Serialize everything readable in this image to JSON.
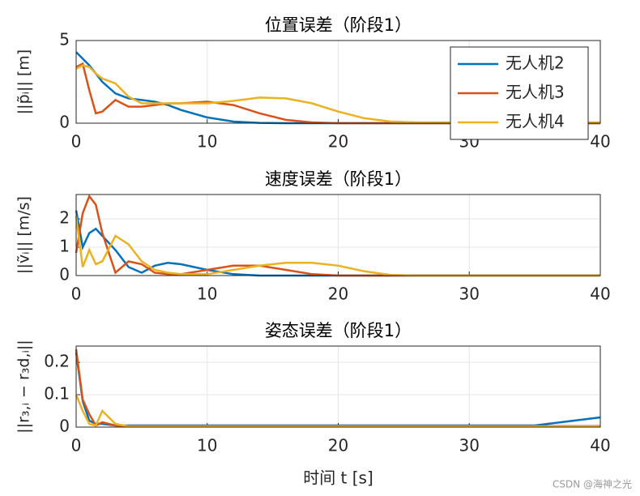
{
  "chart_data": [
    {
      "type": "line",
      "title": "位置误差（阶段1）",
      "ylabel": "||p̃ᵢ|| [m]",
      "x": [
        0,
        0.5,
        1,
        1.5,
        2,
        3,
        4,
        5,
        6,
        7,
        8,
        10,
        12,
        14,
        16,
        18,
        20,
        22,
        24,
        26,
        30,
        35,
        40
      ],
      "xlim": [
        0,
        40
      ],
      "xticks": [
        0,
        10,
        20,
        30,
        40
      ],
      "ylim": [
        0,
        5
      ],
      "yticks": [
        0,
        5
      ],
      "grid": true,
      "legend": "upper right",
      "series": [
        {
          "name": "无人机2",
          "color": "#0072bd",
          "values": [
            4.3,
            3.9,
            3.5,
            3.0,
            2.5,
            1.8,
            1.5,
            1.4,
            1.3,
            1.1,
            0.8,
            0.35,
            0.1,
            0.02,
            0,
            0,
            0,
            0,
            0,
            0,
            0,
            0,
            0
          ]
        },
        {
          "name": "无人机3",
          "color": "#d95319",
          "values": [
            3.4,
            3.6,
            2.0,
            0.6,
            0.7,
            1.4,
            1.0,
            1.0,
            1.1,
            1.2,
            1.2,
            1.3,
            1.1,
            0.6,
            0.2,
            0.05,
            0,
            0,
            0,
            0,
            0,
            0,
            0
          ]
        },
        {
          "name": "无人机4",
          "color": "#edb120",
          "values": [
            3.3,
            3.5,
            3.4,
            3.0,
            2.7,
            2.4,
            1.6,
            1.2,
            1.2,
            1.2,
            1.2,
            1.2,
            1.35,
            1.55,
            1.5,
            1.2,
            0.7,
            0.3,
            0.1,
            0.05,
            0.05,
            0.05,
            0.05
          ]
        }
      ]
    },
    {
      "type": "line",
      "title": "速度误差（阶段1）",
      "ylabel": "||ṽᵢ|| [m/s]",
      "x": [
        0,
        0.5,
        1,
        1.5,
        2,
        3,
        4,
        5,
        6,
        7,
        8,
        10,
        12,
        14,
        16,
        18,
        20,
        22,
        24,
        26,
        30,
        35,
        40
      ],
      "xlim": [
        0,
        40
      ],
      "xticks": [
        0,
        10,
        20,
        30,
        40
      ],
      "ylim": [
        0,
        2.86
      ],
      "yticks": [
        0,
        1,
        2
      ],
      "grid": true,
      "series": [
        {
          "color": "#0072bd",
          "values": [
            2.3,
            1.0,
            1.5,
            1.65,
            1.4,
            0.9,
            0.3,
            0.1,
            0.35,
            0.45,
            0.4,
            0.2,
            0.05,
            0,
            0,
            0,
            0,
            0,
            0,
            0,
            0,
            0,
            0
          ]
        },
        {
          "color": "#d95319",
          "values": [
            0.8,
            2.2,
            2.8,
            2.5,
            1.5,
            0.1,
            0.5,
            0.4,
            0.1,
            0.05,
            0.05,
            0.2,
            0.35,
            0.35,
            0.2,
            0.05,
            0,
            0,
            0,
            0,
            0,
            0,
            0
          ]
        },
        {
          "color": "#edb120",
          "values": [
            2.1,
            0.3,
            0.9,
            0.4,
            0.5,
            1.4,
            1.1,
            0.5,
            0.2,
            0.1,
            0.05,
            0.05,
            0.2,
            0.35,
            0.45,
            0.45,
            0.35,
            0.15,
            0.02,
            0,
            0,
            0,
            0
          ]
        }
      ]
    },
    {
      "type": "line",
      "title": "姿态误差（阶段1）",
      "ylabel": "||r₃,ᵢ − r₃d,ᵢ||",
      "xlabel": "时间 t [s]",
      "x": [
        0,
        0.5,
        1,
        1.5,
        2,
        3,
        4,
        5,
        6,
        7,
        8,
        10,
        12,
        14,
        16,
        18,
        20,
        22,
        24,
        26,
        30,
        35,
        40
      ],
      "xlim": [
        0,
        40
      ],
      "xticks": [
        0,
        10,
        20,
        30,
        40
      ],
      "ylim": [
        0,
        0.25
      ],
      "yticks": [
        0,
        0.1,
        0.2
      ],
      "grid": true,
      "series": [
        {
          "color": "#0072bd",
          "values": [
            0.23,
            0.08,
            0.02,
            0.01,
            0.01,
            0.005,
            0.005,
            0.005,
            0.005,
            0.005,
            0.005,
            0.005,
            0.005,
            0.005,
            0.005,
            0.005,
            0.005,
            0.005,
            0.005,
            0.005,
            0.005,
            0.005,
            0.03
          ]
        },
        {
          "color": "#d95319",
          "values": [
            0.24,
            0.085,
            0.04,
            0.005,
            0.015,
            0.005,
            0.003,
            0.003,
            0.003,
            0.003,
            0.003,
            0.003,
            0.003,
            0.003,
            0.003,
            0.003,
            0.003,
            0.003,
            0.003,
            0.003,
            0.003,
            0.003,
            0.003
          ]
        },
        {
          "color": "#edb120",
          "values": [
            0.1,
            0.05,
            0.01,
            0.005,
            0.05,
            0.01,
            0.002,
            0.002,
            0.002,
            0.002,
            0.002,
            0.002,
            0.002,
            0.002,
            0.002,
            0.002,
            0.002,
            0.002,
            0.002,
            0.002,
            0.002,
            0.002,
            0.002
          ]
        }
      ]
    }
  ],
  "watermark": "CSDN @海神之光"
}
